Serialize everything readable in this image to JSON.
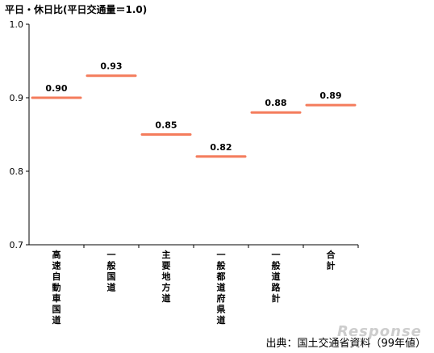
{
  "chart_data": {
    "type": "line",
    "title": "平日・休日比(平日交通量＝1.0)",
    "categories": [
      "高速自動車国道",
      "一般国道",
      "主要地方道",
      "一般都道府県道",
      "一般道路計",
      "合計"
    ],
    "values": [
      0.9,
      0.93,
      0.85,
      0.82,
      0.88,
      0.89
    ],
    "data_labels": [
      "0.90",
      "0.93",
      "0.85",
      "0.82",
      "0.88",
      "0.89"
    ],
    "ylim": [
      0.7,
      1.0
    ],
    "yticks": [
      "0.7",
      "0.8",
      "0.9",
      "1.0"
    ],
    "xlabel": "",
    "ylabel": "",
    "grid": false,
    "mark_color": "#f47c5c"
  },
  "source": "出典：国土交通省資料（99年値）",
  "watermark": "Response"
}
